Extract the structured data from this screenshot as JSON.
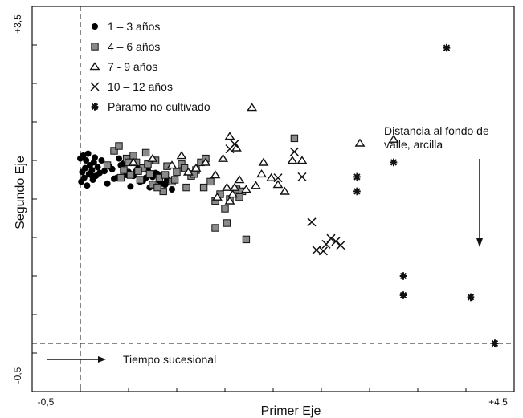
{
  "chart_data": {
    "type": "scatter",
    "xlabel": "Primer Eje",
    "ylabel": "Segundo Eje",
    "xlim": [
      -0.5,
      4.5
    ],
    "ylim": [
      -0.5,
      3.5
    ],
    "x_tick_labels": {
      "min": "-0,5",
      "max": "+4,5"
    },
    "y_tick_labels": {
      "min": "-0,5",
      "max": "+3,5"
    },
    "grid": false,
    "legend_position": "top-left",
    "reference_lines": {
      "vertical_x": 0.0,
      "horizontal_y": 0.0
    },
    "annotations": [
      {
        "id": "tiempo",
        "text": "Tiempo sucesional",
        "direction": "right"
      },
      {
        "id": "distancia",
        "lines": [
          "Distancia al fondo de",
          "valle, arcilla"
        ],
        "direction": "down"
      }
    ],
    "series": [
      {
        "name": "1 – 3 años",
        "marker": "circle",
        "x": [
          0.0,
          0.03,
          0.06,
          0.08,
          0.1,
          0.12,
          0.15,
          0.02,
          0.05,
          0.09,
          0.13,
          0.01,
          0.04,
          0.07,
          0.11,
          0.14,
          0.18,
          0.2,
          0.25,
          0.3,
          0.35,
          0.4,
          0.45,
          0.5,
          0.55,
          0.6,
          0.65,
          0.7,
          0.75,
          0.8,
          0.85,
          0.9,
          0.95,
          0.22,
          0.28,
          0.33,
          0.38,
          0.42,
          0.48,
          0.52,
          0.58,
          0.62,
          0.68,
          0.72,
          0.78,
          0.82,
          0.88,
          0.16
        ],
        "y": [
          1.92,
          1.95,
          1.9,
          1.97,
          1.85,
          1.8,
          1.93,
          1.78,
          1.82,
          1.76,
          1.7,
          1.68,
          1.72,
          1.64,
          1.75,
          1.88,
          1.83,
          1.77,
          1.79,
          1.84,
          1.71,
          1.92,
          1.87,
          1.78,
          1.74,
          1.82,
          1.69,
          1.8,
          1.73,
          1.76,
          1.66,
          1.7,
          1.6,
          1.9,
          1.66,
          1.81,
          1.72,
          1.85,
          1.75,
          1.63,
          1.79,
          1.68,
          1.72,
          1.62,
          1.77,
          1.69,
          1.65,
          1.74
        ]
      },
      {
        "name": "4 – 6 años",
        "marker": "square",
        "x": [
          0.28,
          0.35,
          0.4,
          0.45,
          0.48,
          0.52,
          0.55,
          0.58,
          0.62,
          0.65,
          0.68,
          0.72,
          0.75,
          0.78,
          0.82,
          0.86,
          0.9,
          0.95,
          1.0,
          1.05,
          1.1,
          1.15,
          1.2,
          1.25,
          1.3,
          1.35,
          1.45,
          1.5,
          1.55,
          1.62,
          1.68,
          0.42,
          0.5,
          0.6,
          0.7,
          0.8,
          0.88,
          0.98,
          1.08,
          1.18,
          1.28,
          1.4,
          1.65,
          1.4,
          1.52,
          1.72,
          2.22
        ],
        "y": [
          1.85,
          2.0,
          2.05,
          1.8,
          1.92,
          1.75,
          1.95,
          1.88,
          1.7,
          1.82,
          1.98,
          1.76,
          1.65,
          1.9,
          1.72,
          1.58,
          1.84,
          1.68,
          1.78,
          1.86,
          1.62,
          1.74,
          1.8,
          1.88,
          1.92,
          1.68,
          1.55,
          1.4,
          1.5,
          1.6,
          1.58,
          1.72,
          1.88,
          1.79,
          1.86,
          1.62,
          1.75,
          1.7,
          1.82,
          1.76,
          1.62,
          1.48,
          1.52,
          1.2,
          1.25,
          1.08,
          2.13
        ]
      },
      {
        "name": "7 - 9 años",
        "marker": "triangle",
        "x": [
          1.78,
          0.55,
          0.75,
          0.95,
          1.05,
          1.12,
          1.2,
          1.3,
          1.4,
          1.48,
          1.52,
          1.58,
          1.65,
          1.72,
          1.82,
          1.9,
          1.98,
          2.05,
          2.12,
          2.2,
          1.42,
          1.55,
          1.6,
          1.88,
          2.3,
          2.9,
          3.25,
          1.55,
          1.62
        ],
        "y": [
          2.45,
          1.88,
          1.92,
          1.85,
          1.95,
          1.78,
          1.82,
          1.88,
          1.75,
          1.92,
          1.62,
          1.55,
          1.7,
          1.6,
          1.64,
          1.88,
          1.72,
          1.65,
          1.58,
          1.9,
          1.52,
          1.48,
          1.62,
          1.76,
          1.9,
          2.08,
          2.12,
          2.15,
          2.03
        ]
      },
      {
        "name": "10 – 12 años",
        "marker": "x",
        "x": [
          1.55,
          1.6,
          2.05,
          2.22,
          2.3,
          2.4,
          2.45,
          2.55,
          2.6,
          2.65,
          2.52,
          2.7
        ],
        "y": [
          2.02,
          2.07,
          1.72,
          1.99,
          1.73,
          1.26,
          0.97,
          1.03,
          1.09,
          1.06,
          0.96,
          1.02
        ]
      },
      {
        "name": "Páramo no cultivado",
        "marker": "asterisk",
        "x": [
          3.8,
          3.25,
          2.87,
          2.87,
          3.35,
          3.35,
          4.05,
          4.3
        ],
        "y": [
          3.07,
          1.88,
          1.73,
          1.58,
          0.7,
          0.5,
          0.48,
          0.0
        ]
      }
    ]
  }
}
